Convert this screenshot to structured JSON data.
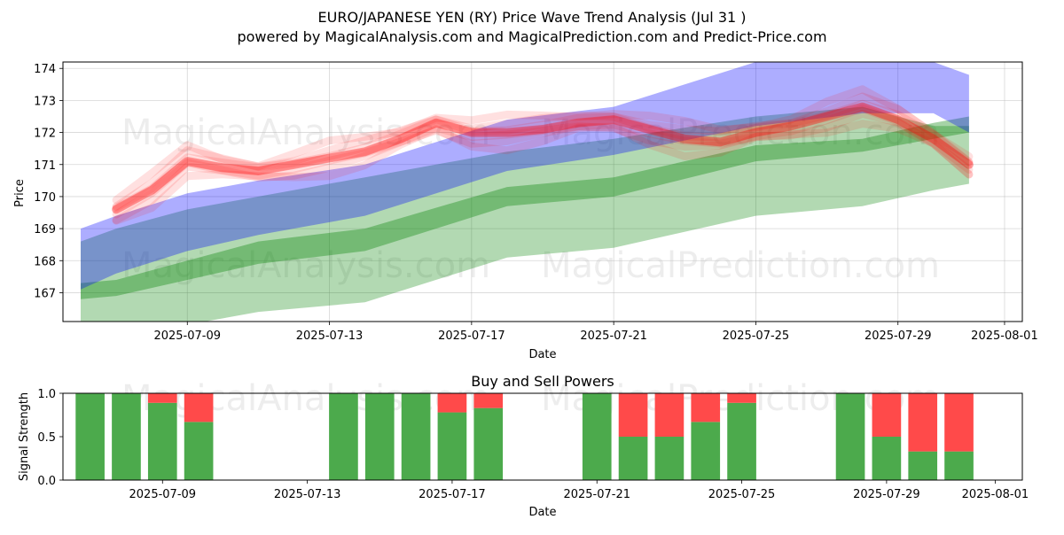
{
  "title_line1": "EURO/JAPANESE YEN (RY) Price Wave Trend Analysis (Jul 31 )",
  "title_line2": "powered by MagicalAnalysis.com and MagicalPrediction.com and Predict-Price.com",
  "watermarks": [
    "MagicalAnalysis.com",
    "MagicalPrediction.com"
  ],
  "chart_data": [
    {
      "type": "line",
      "title": "",
      "xlabel": "Date",
      "ylabel": "Price",
      "x_range": [
        "2025-07-05T12:00",
        "2025-08-01T12:00"
      ],
      "ylim": [
        166.1,
        174.2
      ],
      "x_ticks": [
        "2025-07-09",
        "2025-07-13",
        "2025-07-17",
        "2025-07-21",
        "2025-07-25",
        "2025-07-29",
        "2025-08-01"
      ],
      "y_ticks": [
        167,
        168,
        169,
        170,
        171,
        172,
        173,
        174
      ],
      "grid": true,
      "colors": {
        "price": "#ff0000",
        "blue_band": "#0000ff",
        "green_band": "#008000"
      },
      "price_series": {
        "x": [
          "2025-07-07",
          "2025-07-08",
          "2025-07-09",
          "2025-07-10",
          "2025-07-11",
          "2025-07-12",
          "2025-07-13",
          "2025-07-14",
          "2025-07-15",
          "2025-07-16",
          "2025-07-17",
          "2025-07-18",
          "2025-07-19",
          "2025-07-20",
          "2025-07-21",
          "2025-07-22",
          "2025-07-23",
          "2025-07-24",
          "2025-07-25",
          "2025-07-26",
          "2025-07-27",
          "2025-07-28",
          "2025-07-29",
          "2025-07-30",
          "2025-07-31"
        ],
        "y": [
          169.6,
          170.2,
          171.1,
          170.9,
          170.8,
          171.0,
          171.2,
          171.4,
          171.8,
          172.3,
          172.0,
          172.0,
          172.1,
          172.3,
          172.4,
          172.1,
          171.8,
          171.7,
          172.0,
          172.2,
          172.5,
          172.8,
          172.4,
          171.8,
          171.0
        ]
      },
      "blue_band": {
        "x": [
          "2025-07-06",
          "2025-07-07",
          "2025-07-09",
          "2025-07-11",
          "2025-07-14",
          "2025-07-18",
          "2025-07-21",
          "2025-07-25",
          "2025-07-28",
          "2025-07-30",
          "2025-07-31"
        ],
        "upper": [
          169.0,
          169.4,
          170.1,
          170.5,
          171.0,
          172.4,
          172.8,
          174.2,
          174.2,
          174.2,
          173.8
        ],
        "lower": [
          167.1,
          167.6,
          168.3,
          168.8,
          169.4,
          170.8,
          171.3,
          172.2,
          172.6,
          172.6,
          172.0
        ]
      },
      "green_band": {
        "x": [
          "2025-07-06",
          "2025-07-07",
          "2025-07-09",
          "2025-07-11",
          "2025-07-14",
          "2025-07-18",
          "2025-07-21",
          "2025-07-25",
          "2025-07-28",
          "2025-07-30",
          "2025-07-31"
        ],
        "upper": [
          168.6,
          169.0,
          169.6,
          170.0,
          170.6,
          171.4,
          171.8,
          172.5,
          172.8,
          172.2,
          172.2
        ],
        "lower": [
          165.5,
          166.0,
          166.0,
          166.4,
          166.7,
          168.1,
          168.4,
          169.4,
          169.7,
          170.2,
          170.4
        ],
        "center_upper": [
          167.3,
          167.4,
          168.0,
          168.6,
          169.0,
          170.3,
          170.6,
          171.6,
          171.8,
          172.3,
          172.5
        ],
        "center_lower": [
          166.8,
          166.9,
          167.4,
          167.9,
          168.3,
          169.7,
          170.0,
          171.1,
          171.4,
          171.8,
          172.0
        ]
      }
    },
    {
      "type": "bar",
      "title": "Buy and Sell Powers",
      "xlabel": "Date",
      "ylabel": "Signal Strength",
      "ylim": [
        0,
        1
      ],
      "y_ticks": [
        "0.0",
        "0.5",
        "1.0"
      ],
      "x_ticks": [
        "2025-07-09",
        "2025-07-13",
        "2025-07-17",
        "2025-07-21",
        "2025-07-25",
        "2025-07-29",
        "2025-08-01"
      ],
      "colors": {
        "buy": "#4caa4c",
        "sell": "#ff4a4a"
      },
      "dates": [
        "2025-07-07",
        "2025-07-08",
        "2025-07-09",
        "2025-07-10",
        "2025-07-14",
        "2025-07-15",
        "2025-07-16",
        "2025-07-17",
        "2025-07-18",
        "2025-07-21",
        "2025-07-22",
        "2025-07-23",
        "2025-07-24",
        "2025-07-25",
        "2025-07-28",
        "2025-07-29",
        "2025-07-30",
        "2025-07-31"
      ],
      "buy": [
        1.0,
        1.0,
        0.89,
        0.67,
        1.0,
        1.0,
        1.0,
        0.78,
        0.83,
        1.0,
        0.5,
        0.5,
        0.67,
        0.89,
        1.0,
        0.5,
        0.33,
        0.33
      ]
    }
  ]
}
